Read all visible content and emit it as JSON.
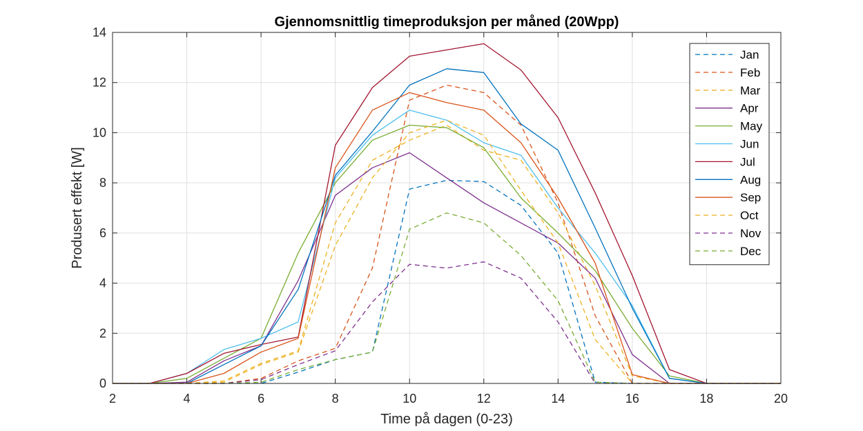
{
  "chart_data": {
    "type": "line",
    "title": "Gjennomsnittlig timeproduksjon per måned (20Wpp)",
    "xlabel": "Time på dagen (0-23)",
    "ylabel": "Produsert effekt [W]",
    "xlim": [
      2,
      20
    ],
    "ylim": [
      0,
      14
    ],
    "xticks": [
      "2",
      "4",
      "6",
      "8",
      "10",
      "12",
      "14",
      "16",
      "18",
      "20"
    ],
    "yticks": [
      "0",
      "2",
      "4",
      "6",
      "8",
      "10",
      "12",
      "14"
    ],
    "grid": true,
    "legend_position": "top-right",
    "x": [
      2,
      3,
      4,
      5,
      6,
      7,
      8,
      9,
      10,
      11,
      12,
      13,
      14,
      15,
      16,
      17,
      18,
      19,
      20
    ],
    "series": [
      {
        "name": "Jan",
        "style": "dashed",
        "color": "#0072BD",
        "values": [
          0,
          0,
          0,
          0,
          0,
          0.45,
          0.95,
          1.25,
          7.75,
          8.1,
          8.05,
          7.1,
          5.2,
          0.05,
          0,
          0,
          0,
          0,
          0
        ]
      },
      {
        "name": "Feb",
        "style": "dashed",
        "color": "#D95319",
        "values": [
          0,
          0,
          0,
          0,
          0.2,
          0.9,
          1.4,
          4.6,
          11.3,
          11.9,
          11.6,
          10.3,
          7.2,
          2.7,
          0,
          0,
          0,
          0,
          0
        ]
      },
      {
        "name": "Mar",
        "style": "dashed",
        "color": "#EDB120",
        "values": [
          0,
          0,
          0,
          0.1,
          0.8,
          1.3,
          6.4,
          8.9,
          9.7,
          10.3,
          9.3,
          8.9,
          6.8,
          3.9,
          0.3,
          0,
          0,
          0,
          0
        ]
      },
      {
        "name": "Apr",
        "style": "solid",
        "color": "#7E2F8E",
        "values": [
          0,
          0,
          0.05,
          0.9,
          1.5,
          4.1,
          7.5,
          8.6,
          9.2,
          8.2,
          7.2,
          6.4,
          5.6,
          4.2,
          1.15,
          0,
          0,
          0,
          0
        ]
      },
      {
        "name": "May",
        "style": "solid",
        "color": "#77AC30",
        "values": [
          0,
          0,
          0.2,
          1.0,
          1.8,
          5.2,
          8.0,
          9.7,
          10.3,
          10.2,
          9.4,
          7.4,
          6.0,
          4.5,
          2.2,
          0.3,
          0,
          0,
          0
        ]
      },
      {
        "name": "Jun",
        "style": "solid",
        "color": "#4DBEEE",
        "values": [
          0,
          0,
          0.4,
          1.35,
          1.8,
          2.45,
          8.2,
          9.9,
          10.9,
          10.5,
          9.6,
          9.1,
          7.0,
          5.2,
          3.1,
          0.2,
          0,
          0,
          0
        ]
      },
      {
        "name": "Jul",
        "style": "solid",
        "color": "#A2142F",
        "values": [
          0,
          0,
          0.4,
          1.2,
          1.55,
          1.85,
          9.5,
          11.8,
          13.05,
          13.3,
          13.55,
          12.5,
          10.6,
          7.6,
          4.3,
          0.55,
          0,
          0,
          0
        ]
      },
      {
        "name": "Aug",
        "style": "solid",
        "color": "#0072BD",
        "values": [
          0,
          0,
          0,
          0.75,
          1.5,
          3.75,
          8.3,
          10.05,
          11.9,
          12.55,
          12.4,
          10.35,
          9.3,
          6.2,
          3.0,
          0.2,
          0,
          0,
          0
        ]
      },
      {
        "name": "Sep",
        "style": "solid",
        "color": "#D95319",
        "values": [
          0,
          0,
          0,
          0.4,
          1.25,
          1.8,
          8.6,
          10.9,
          11.6,
          11.2,
          10.9,
          9.6,
          7.4,
          4.8,
          0.35,
          0,
          0,
          0,
          0
        ]
      },
      {
        "name": "Oct",
        "style": "dashed",
        "color": "#EDB120",
        "values": [
          0,
          0,
          0,
          0.05,
          0.75,
          1.25,
          5.5,
          8.2,
          10.0,
          10.5,
          9.9,
          7.7,
          5.6,
          1.75,
          0,
          0,
          0,
          0,
          0
        ]
      },
      {
        "name": "Nov",
        "style": "dashed",
        "color": "#7E2F8E",
        "values": [
          0,
          0,
          0,
          0,
          0.15,
          0.75,
          1.3,
          3.25,
          4.75,
          4.6,
          4.85,
          4.2,
          2.45,
          0,
          0,
          0,
          0,
          0,
          0
        ]
      },
      {
        "name": "Dec",
        "style": "dashed",
        "color": "#77AC30",
        "values": [
          0,
          0,
          0,
          0,
          0.05,
          0.55,
          0.95,
          1.25,
          6.15,
          6.8,
          6.4,
          5.1,
          3.3,
          0.05,
          0,
          0,
          0,
          0,
          0
        ]
      }
    ]
  }
}
